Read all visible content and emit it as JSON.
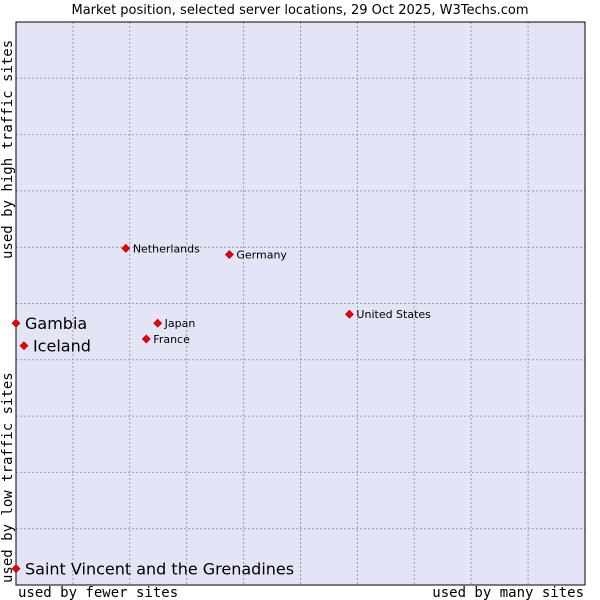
{
  "chart_data": {
    "type": "scatter",
    "title": "Market position, selected server locations, 29 Oct 2025, W3Techs.com",
    "xlabel_left": "used by fewer sites",
    "xlabel_right": "used by many sites",
    "ylabel_bottom": "used by low traffic sites",
    "ylabel_top": "used by high traffic sites",
    "xlim": [
      0,
      10
    ],
    "ylim": [
      0,
      10
    ],
    "grid": true,
    "colors": {
      "plot_bg": "#e4e4f7",
      "point": "#ee0000",
      "grid": "#9a9ab8",
      "border": "#000000"
    },
    "points": [
      {
        "label": "Netherlands",
        "x": 1.93,
        "y": 5.98,
        "size": "small"
      },
      {
        "label": "Germany",
        "x": 3.75,
        "y": 5.87,
        "size": "small"
      },
      {
        "label": "United States",
        "x": 5.86,
        "y": 4.81,
        "size": "small"
      },
      {
        "label": "Japan",
        "x": 2.49,
        "y": 4.65,
        "size": "small"
      },
      {
        "label": "France",
        "x": 2.29,
        "y": 4.37,
        "size": "small"
      },
      {
        "label": "Gambia",
        "x": 0.0,
        "y": 4.65,
        "size": "large"
      },
      {
        "label": "Iceland",
        "x": 0.14,
        "y": 4.25,
        "size": "large"
      },
      {
        "label": "Saint Vincent and the Grenadines",
        "x": 0.0,
        "y": 0.29,
        "size": "large"
      }
    ]
  }
}
